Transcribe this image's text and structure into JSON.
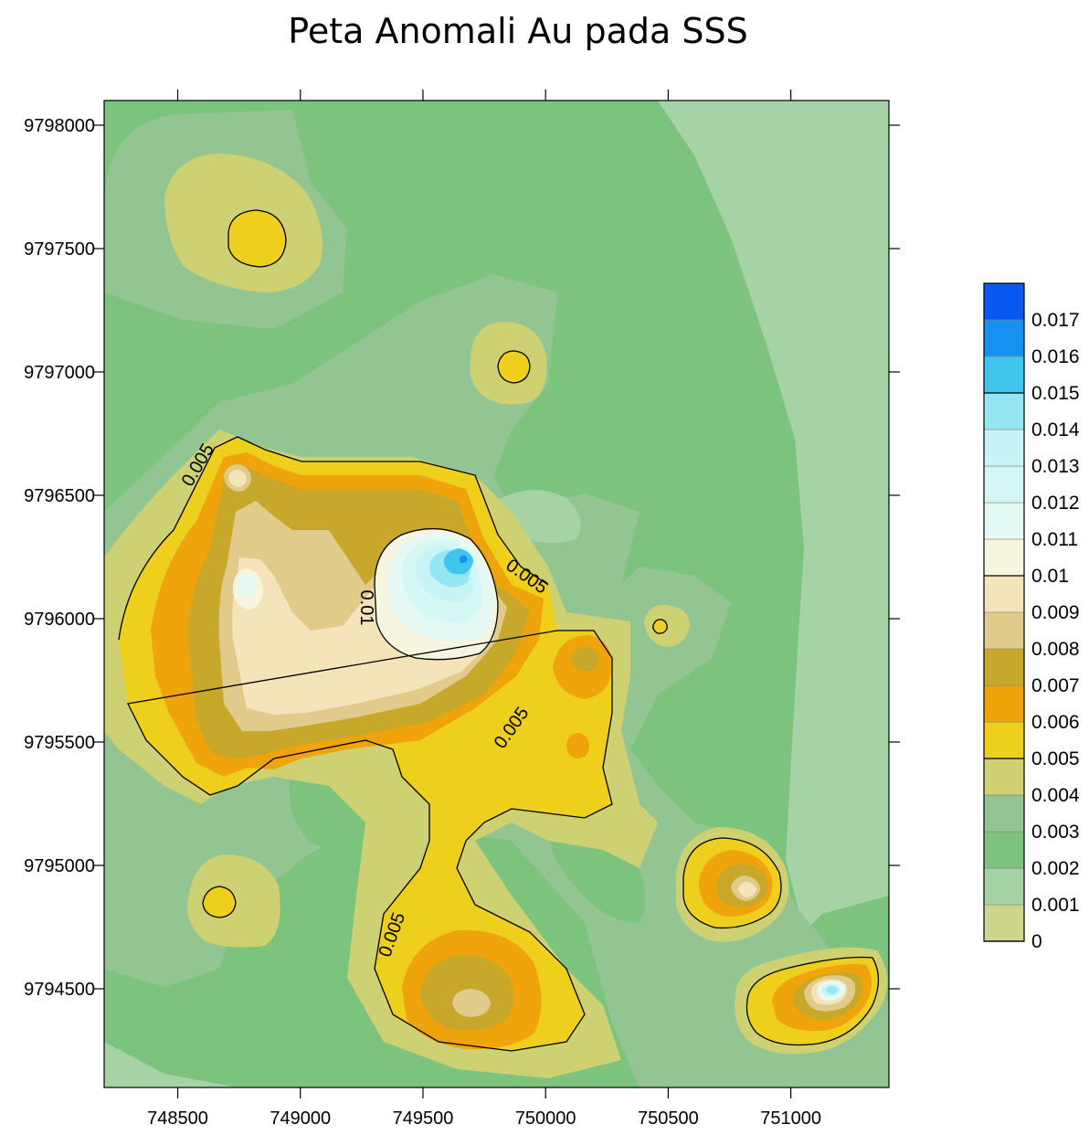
{
  "chart_data": {
    "type": "heatmap",
    "title": "Peta Anomali Au pada SSS",
    "xlabel": "",
    "ylabel": "",
    "xlim": [
      748200,
      751400
    ],
    "ylim": [
      9794100,
      9798100
    ],
    "x_ticks": [
      748500,
      749000,
      749500,
      750000,
      750500,
      751000
    ],
    "y_ticks": [
      9794500,
      9795000,
      9795500,
      9796000,
      9796500,
      9797000,
      9797500,
      9798000
    ],
    "grid": false,
    "legend_position": "right",
    "legend": {
      "levels": [
        "0",
        "0.001",
        "0.002",
        "0.003",
        "0.004",
        "0.005",
        "0.006",
        "0.007",
        "0.008",
        "0.009",
        "0.01",
        "0.011",
        "0.012",
        "0.013",
        "0.014",
        "0.015",
        "0.016",
        "0.017"
      ],
      "colors": [
        "#cdd68a",
        "#a6d3a6",
        "#7cc47e",
        "#93c593",
        "#cdd172",
        "#eecf1c",
        "#eea40a",
        "#c7a82a",
        "#e1cb8b",
        "#f5e4ba",
        "#f6f5df",
        "#e4f8f4",
        "#d4f7f4",
        "#c9f4f5",
        "#94e6f3",
        "#40c6ee",
        "#1592f1",
        "#0a58f2"
      ]
    },
    "contour_labels": [
      "0.005",
      "0.005",
      "0.005",
      "0.005",
      "0.005",
      "0.01"
    ],
    "anomalies": [
      {
        "x": 749660,
        "y": 9796230,
        "peak": 0.016
      },
      {
        "x": 748800,
        "y": 9796150,
        "peak": 0.01
      },
      {
        "x": 748700,
        "y": 9796580,
        "peak": 0.01
      },
      {
        "x": 749200,
        "y": 9795850,
        "peak": 0.01
      },
      {
        "x": 748800,
        "y": 9797550,
        "peak": 0.005
      },
      {
        "x": 749850,
        "y": 9797000,
        "peak": 0.005
      },
      {
        "x": 750490,
        "y": 9795970,
        "peak": 0.005
      },
      {
        "x": 748670,
        "y": 9794830,
        "peak": 0.005
      },
      {
        "x": 750180,
        "y": 9795820,
        "peak": 0.006
      },
      {
        "x": 750130,
        "y": 9795450,
        "peak": 0.007
      },
      {
        "x": 749580,
        "y": 9794420,
        "peak": 0.009
      },
      {
        "x": 750820,
        "y": 9794880,
        "peak": 0.01
      },
      {
        "x": 751160,
        "y": 9794490,
        "peak": 0.014
      }
    ]
  }
}
